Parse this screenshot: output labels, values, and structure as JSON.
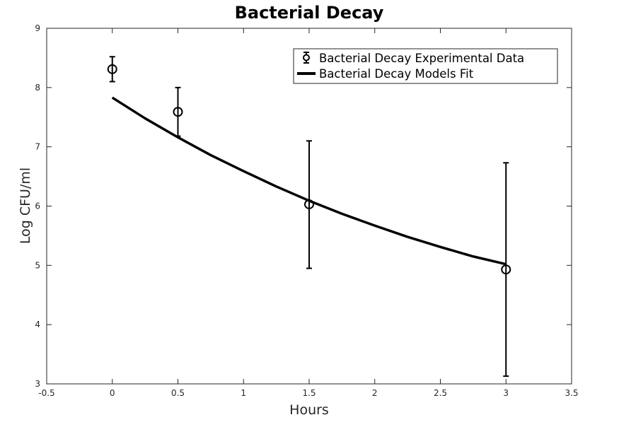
{
  "chart_data": {
    "type": "scatter",
    "title": "Bacterial Decay",
    "xlabel": "Hours",
    "ylabel": "Log CFU/ml",
    "xlim": [
      -0.5,
      3.5
    ],
    "ylim": [
      3,
      9
    ],
    "xticks": [
      -0.5,
      0,
      0.5,
      1,
      1.5,
      2,
      2.5,
      3,
      3.5
    ],
    "xtick_labels": [
      "-0.5",
      "0",
      "0.5",
      "1",
      "1.5",
      "2",
      "2.5",
      "3",
      "3.5"
    ],
    "yticks": [
      3,
      4,
      5,
      6,
      7,
      8,
      9
    ],
    "ytick_labels": [
      "3",
      "4",
      "5",
      "6",
      "7",
      "8",
      "9"
    ],
    "legend_position": "top-right",
    "series": [
      {
        "name": "Bacterial Decay Experimental Data",
        "kind": "errorbar",
        "marker": "circle",
        "x": [
          0,
          0.5,
          1.5,
          3
        ],
        "y": [
          8.31,
          7.59,
          6.03,
          4.93
        ],
        "err_low": [
          8.1,
          7.18,
          4.95,
          3.13
        ],
        "err_high": [
          8.52,
          8.0,
          7.1,
          6.73
        ]
      },
      {
        "name": "Bacterial Decay Models Fit",
        "kind": "line",
        "model": "exponential-decay",
        "x": [
          0,
          0.25,
          0.5,
          0.75,
          1,
          1.25,
          1.5,
          1.75,
          2,
          2.25,
          2.5,
          2.75,
          3
        ],
        "y": [
          7.83,
          7.48,
          7.16,
          6.86,
          6.59,
          6.33,
          6.09,
          5.87,
          5.67,
          5.48,
          5.31,
          5.15,
          5.02
        ]
      }
    ],
    "color": "#000000",
    "axis_color": "#262626"
  }
}
